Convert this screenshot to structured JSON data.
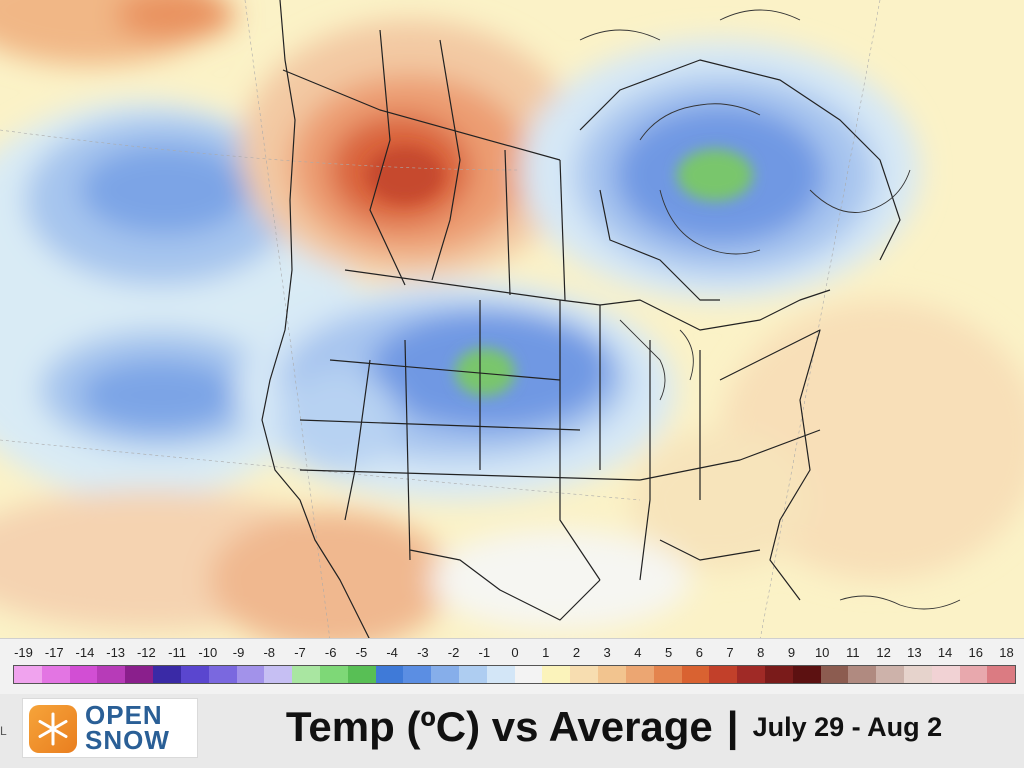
{
  "map": {
    "legend": {
      "labels": [
        "-19",
        "-17",
        "-14",
        "-13",
        "-12",
        "-11",
        "-10",
        "-9",
        "-8",
        "-7",
        "-6",
        "-5",
        "-4",
        "-3",
        "-2",
        "-1",
        "0",
        "1",
        "2",
        "3",
        "4",
        "5",
        "6",
        "7",
        "8",
        "9",
        "10",
        "11",
        "12",
        "13",
        "14",
        "16",
        "18"
      ],
      "colors": [
        "#f0a3ee",
        "#e375e3",
        "#d24ed4",
        "#b73bb8",
        "#8a1f8c",
        "#3a2aa6",
        "#5a46cf",
        "#7a68df",
        "#a292ea",
        "#c6bff3",
        "#a9e6a1",
        "#7ed877",
        "#58bf55",
        "#3f7ad8",
        "#5b8ee3",
        "#86aeea",
        "#aecdf1",
        "#d3e6f7",
        "#f3f3f3",
        "#fbf3bb",
        "#f7ddb0",
        "#f2c48f",
        "#eca672",
        "#e4844e",
        "#d96231",
        "#c2402a",
        "#a02a26",
        "#7a1b1a",
        "#5c1111",
        "#8c5c50",
        "#b08a80",
        "#cdb2aa",
        "#e6d3cc",
        "#f1d2d4",
        "#e8a8ad",
        "#db7b82"
      ]
    }
  },
  "footer": {
    "logo": {
      "line1": "OPEN",
      "line2": "SNOW",
      "mark": "snowflake-icon"
    },
    "title": "Temp (ºC) vs Average",
    "separator": "|",
    "dates": "July 29 - Aug 2",
    "edge_letter": "L"
  }
}
